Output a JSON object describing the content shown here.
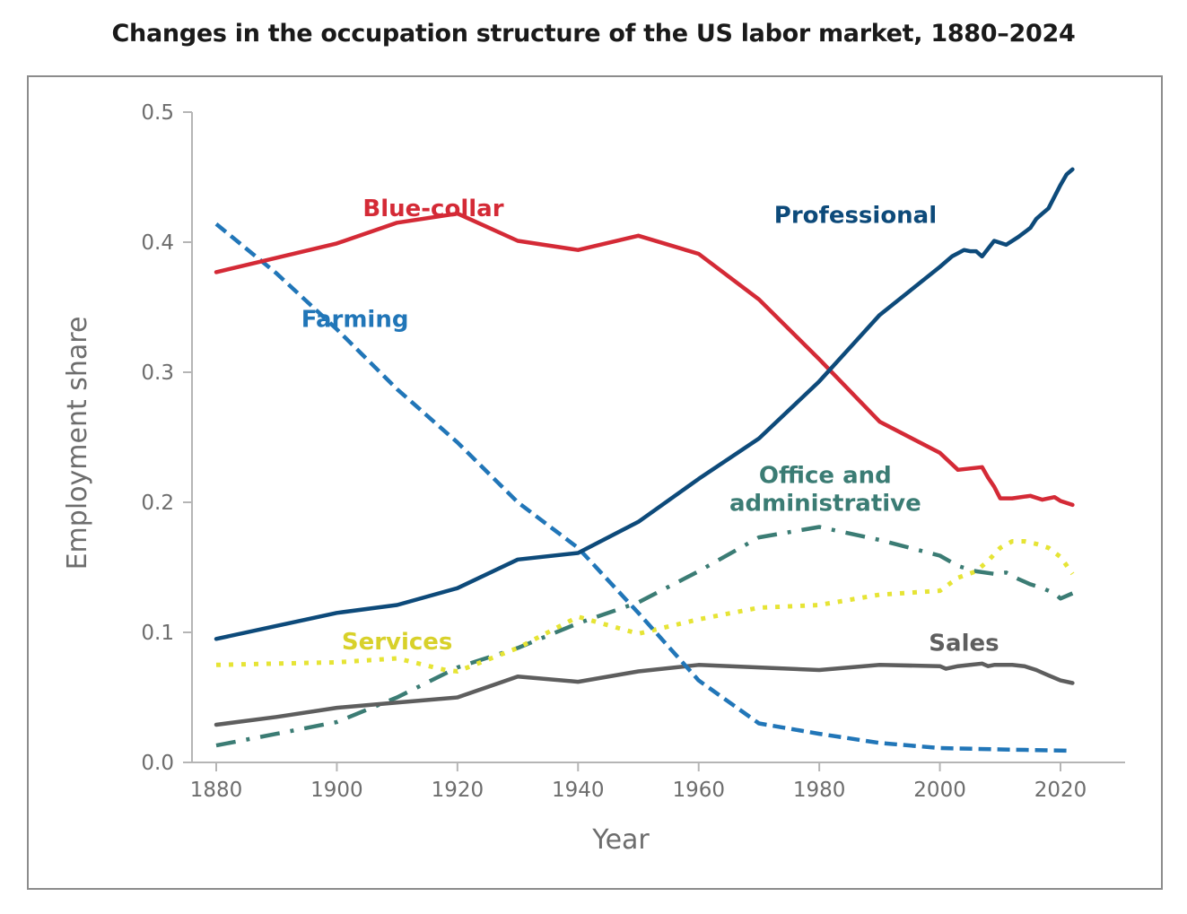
{
  "chart_data": {
    "type": "line",
    "title": "Changes in the occupation structure of the US labor market, 1880–2024",
    "xlabel": "Year",
    "ylabel": "Employment share",
    "xlim": [
      1875,
      2031
    ],
    "ylim": [
      0,
      0.5
    ],
    "x_ticks": [
      1880,
      1900,
      1920,
      1940,
      1960,
      1980,
      2000,
      2020
    ],
    "x_tick_labels": [
      "1880",
      "1900",
      "1920",
      "1940",
      "1960",
      "1980",
      "2000",
      "2020"
    ],
    "y_ticks": [
      0,
      0.1,
      0.2,
      0.3,
      0.4,
      0.5
    ],
    "y_tick_labels": [
      "0.0",
      "0.1",
      "0.2",
      "0.3",
      "0.4",
      "0.5"
    ],
    "grid": false,
    "legend": "inline labels",
    "series": [
      {
        "name": "Blue-collar",
        "color": "#d42a36",
        "style": "solid",
        "label_pos": {
          "x": 1916,
          "y": 0.42
        },
        "x": [
          1880,
          1890,
          1900,
          1910,
          1920,
          1930,
          1940,
          1950,
          1960,
          1970,
          1980,
          1990,
          2000,
          2003,
          2005,
          2007,
          2008,
          2009,
          2010,
          2012,
          2015,
          2017,
          2019,
          2020,
          2022
        ],
        "values": [
          0.377,
          0.388,
          0.399,
          0.415,
          0.422,
          0.401,
          0.394,
          0.405,
          0.391,
          0.356,
          0.31,
          0.262,
          0.238,
          0.225,
          0.226,
          0.227,
          0.219,
          0.212,
          0.203,
          0.203,
          0.205,
          0.202,
          0.204,
          0.201,
          0.198
        ]
      },
      {
        "name": "Professional",
        "color": "#0d4a7a",
        "style": "solid",
        "label_pos": {
          "x": 1986,
          "y": 0.415
        },
        "x": [
          1880,
          1890,
          1900,
          1910,
          1920,
          1930,
          1940,
          1950,
          1960,
          1970,
          1980,
          1990,
          2000,
          2002,
          2004,
          2005,
          2006,
          2007,
          2009,
          2011,
          2013,
          2015,
          2016,
          2017,
          2018,
          2020,
          2021,
          2022
        ],
        "values": [
          0.095,
          0.105,
          0.115,
          0.121,
          0.134,
          0.156,
          0.161,
          0.185,
          0.218,
          0.249,
          0.293,
          0.344,
          0.381,
          0.389,
          0.394,
          0.393,
          0.393,
          0.389,
          0.401,
          0.398,
          0.404,
          0.411,
          0.418,
          0.422,
          0.426,
          0.444,
          0.452,
          0.456
        ]
      },
      {
        "name": "Farming",
        "color": "#2176b8",
        "style": "dashed",
        "label_pos": {
          "x": 1903,
          "y": 0.335
        },
        "x": [
          1880,
          1890,
          1900,
          1910,
          1920,
          1930,
          1940,
          1950,
          1960,
          1970,
          1980,
          1990,
          2000,
          2010,
          2022
        ],
        "values": [
          0.414,
          0.376,
          0.333,
          0.287,
          0.246,
          0.2,
          0.165,
          0.115,
          0.063,
          0.03,
          0.022,
          0.015,
          0.011,
          0.01,
          0.009
        ]
      },
      {
        "name": "Office and administrative",
        "color": "#3b7c74",
        "style": "dashdot",
        "label_pos": {
          "x": 1981,
          "y": 0.215
        },
        "x": [
          1880,
          1890,
          1900,
          1910,
          1920,
          1930,
          1940,
          1950,
          1960,
          1970,
          1980,
          1990,
          2000,
          2003,
          2006,
          2009,
          2011,
          2013,
          2015,
          2017,
          2019,
          2020,
          2022
        ],
        "values": [
          0.013,
          0.022,
          0.031,
          0.05,
          0.073,
          0.088,
          0.107,
          0.123,
          0.147,
          0.173,
          0.181,
          0.171,
          0.159,
          0.151,
          0.147,
          0.145,
          0.146,
          0.141,
          0.137,
          0.134,
          0.13,
          0.126,
          0.13
        ]
      },
      {
        "name": "Services",
        "color": "#e6e435",
        "style": "dotted",
        "label_pos": {
          "x": 1910,
          "y": 0.087
        },
        "x": [
          1880,
          1890,
          1900,
          1910,
          1918,
          1920,
          1930,
          1940,
          1950,
          1960,
          1970,
          1980,
          1990,
          2000,
          2003,
          2006,
          2008,
          2010,
          2012,
          2014,
          2016,
          2018,
          2020,
          2022
        ],
        "values": [
          0.075,
          0.076,
          0.077,
          0.08,
          0.071,
          0.07,
          0.088,
          0.112,
          0.099,
          0.11,
          0.119,
          0.121,
          0.129,
          0.132,
          0.142,
          0.147,
          0.155,
          0.165,
          0.17,
          0.17,
          0.168,
          0.165,
          0.158,
          0.145
        ]
      },
      {
        "name": "Sales",
        "color": "#5e5e5e",
        "style": "solid",
        "label_pos": {
          "x": 2004,
          "y": 0.086
        },
        "x": [
          1880,
          1890,
          1900,
          1910,
          1920,
          1930,
          1940,
          1950,
          1960,
          1970,
          1980,
          1990,
          2000,
          2001,
          2003,
          2005,
          2007,
          2008,
          2009,
          2010,
          2012,
          2014,
          2016,
          2017,
          2018,
          2020,
          2022
        ],
        "values": [
          0.029,
          0.035,
          0.042,
          0.046,
          0.05,
          0.066,
          0.062,
          0.07,
          0.075,
          0.073,
          0.071,
          0.075,
          0.074,
          0.072,
          0.074,
          0.075,
          0.076,
          0.074,
          0.075,
          0.075,
          0.075,
          0.074,
          0.071,
          0.069,
          0.067,
          0.063,
          0.061
        ]
      }
    ]
  }
}
